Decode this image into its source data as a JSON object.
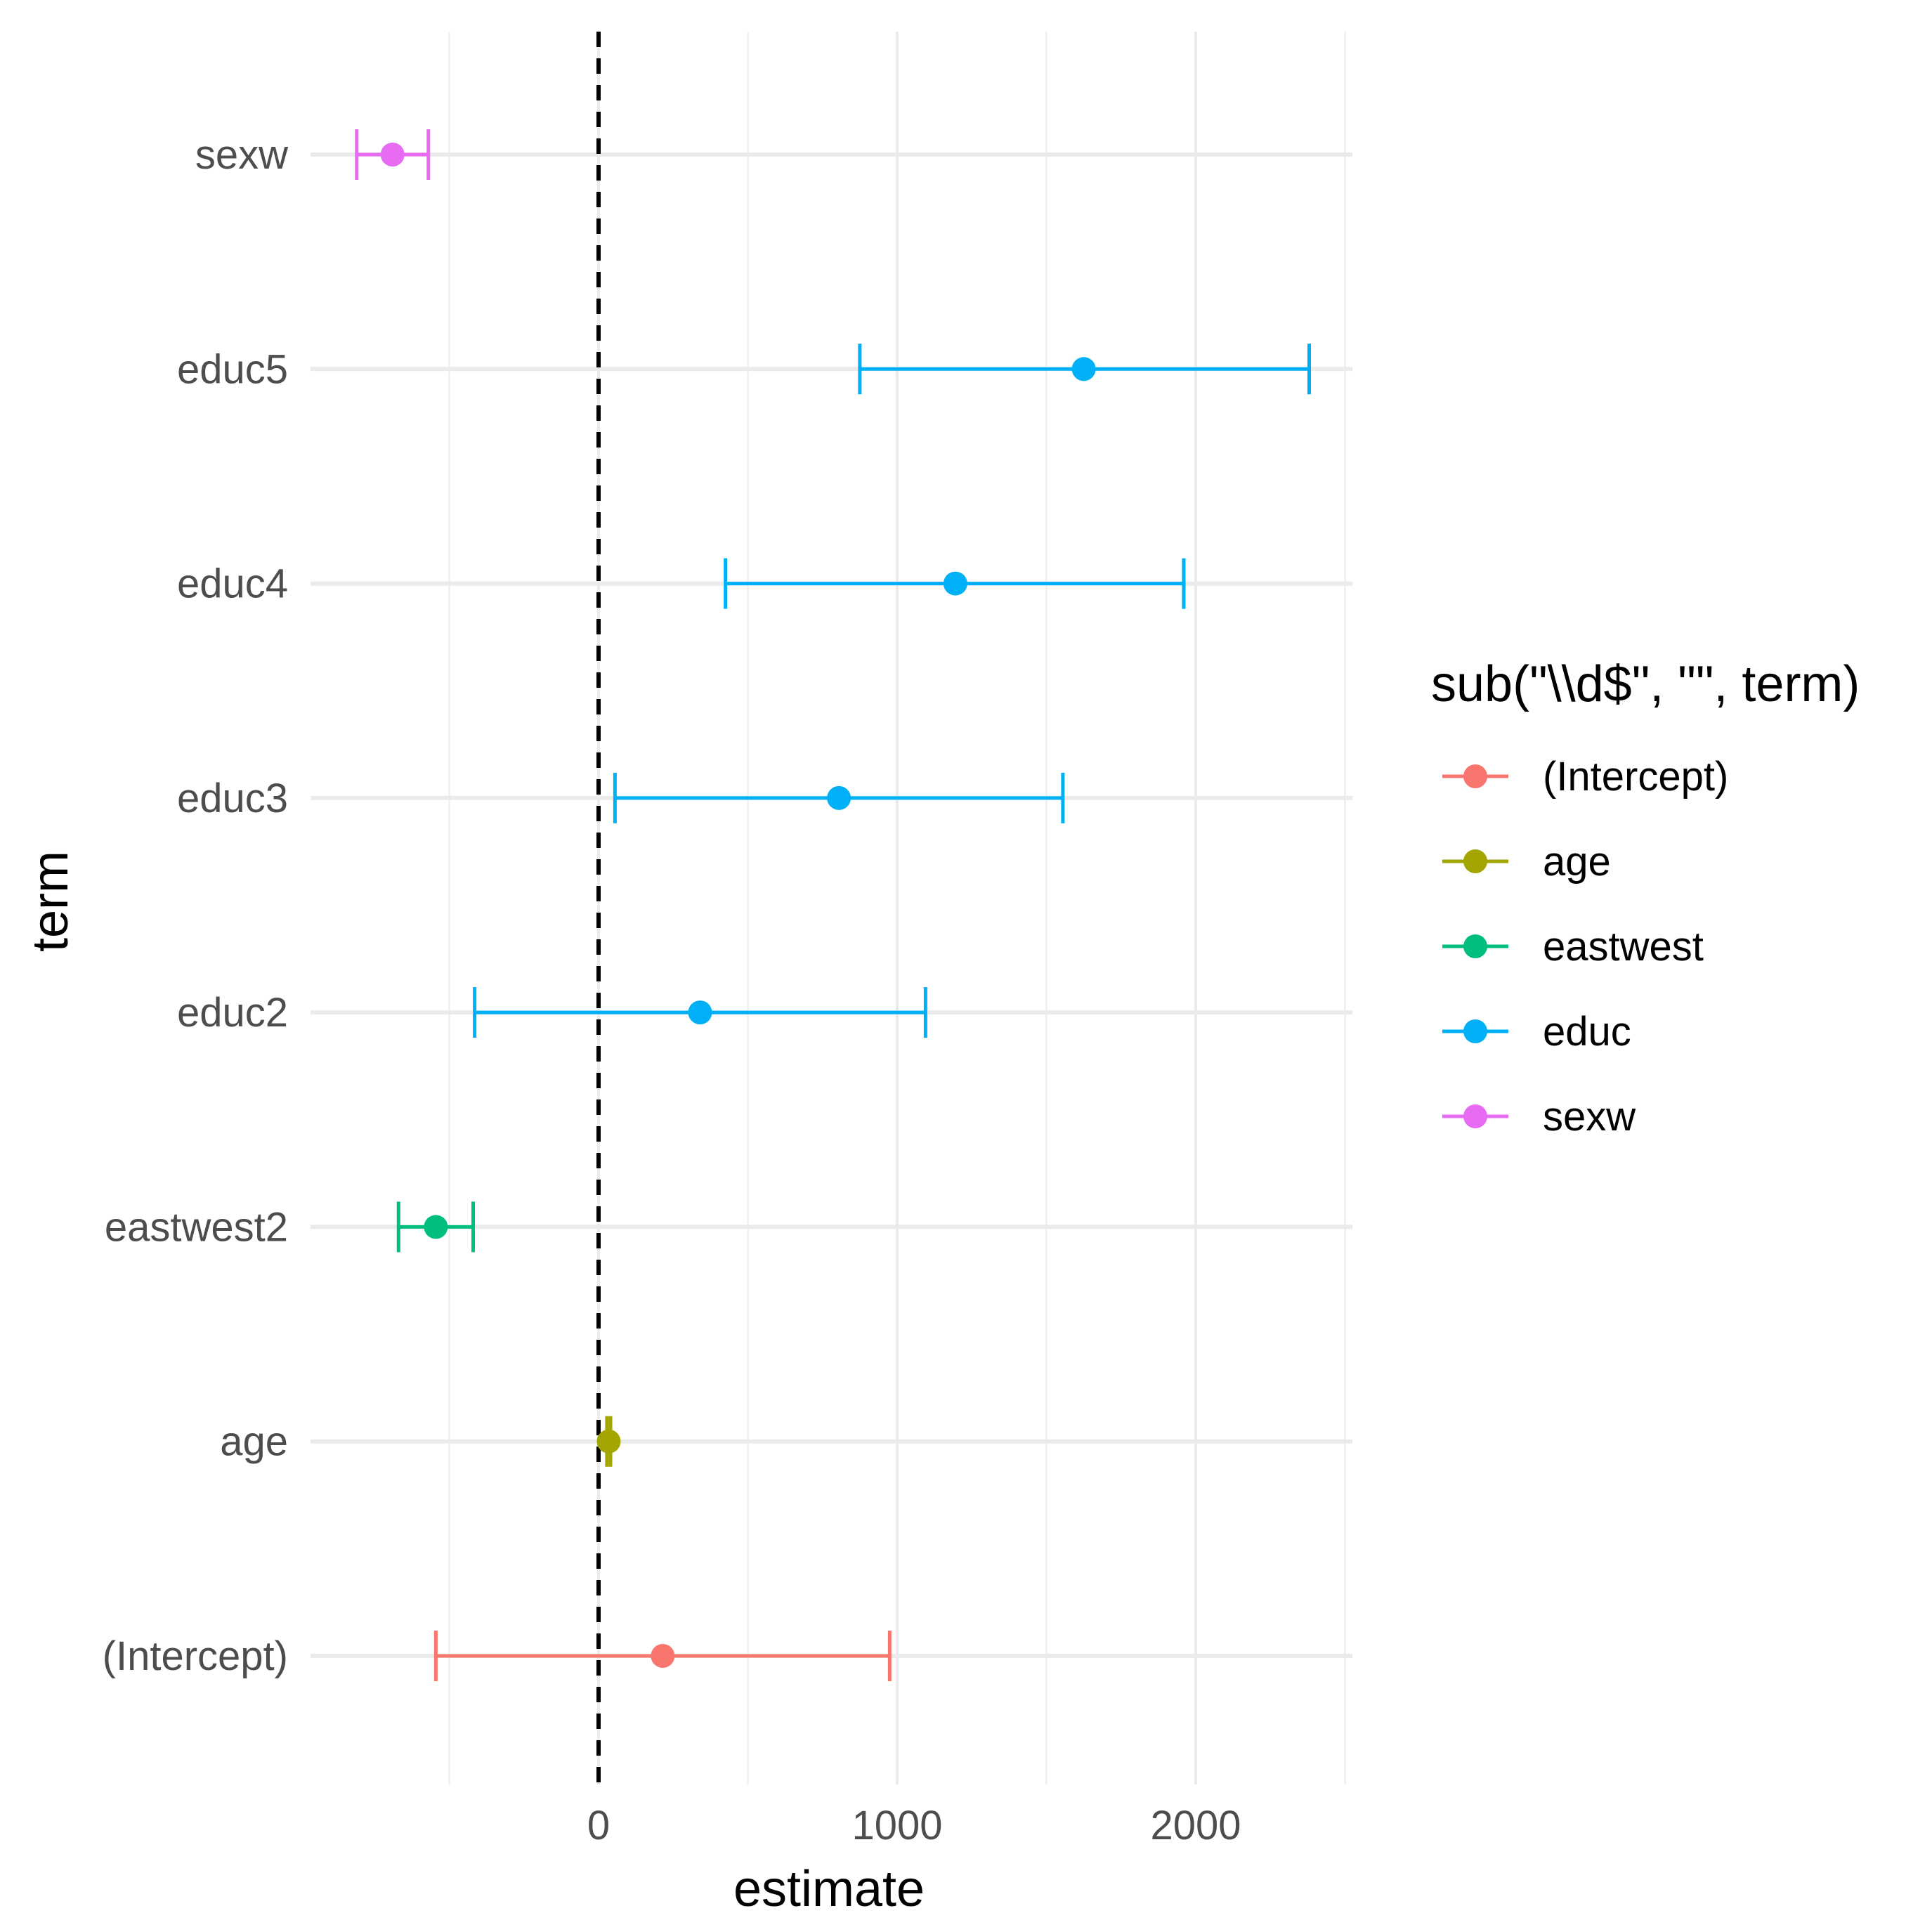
{
  "chart_data": {
    "type": "scatter",
    "subtype": "coefficient-plot-with-error-bars",
    "xlabel": "estimate",
    "ylabel": "term",
    "xlim": [
      -1010,
      2530
    ],
    "x_ticks": [
      0,
      1000,
      2000
    ],
    "x_tick_labels": [
      "0",
      "1000",
      "2000"
    ],
    "reference_line": {
      "x": 0,
      "style": "dashed",
      "color": "#000000"
    },
    "grid": true,
    "terms": [
      {
        "term": "(Intercept)",
        "group": "(Intercept)",
        "estimate": 215,
        "conf_low": -545,
        "conf_high": 975
      },
      {
        "term": "age",
        "group": "age",
        "estimate": 34,
        "conf_low": 28,
        "conf_high": 40
      },
      {
        "term": "eastwest2",
        "group": "eastwest",
        "estimate": -545,
        "conf_low": -670,
        "conf_high": -420
      },
      {
        "term": "educ2",
        "group": "educ",
        "estimate": 340,
        "conf_low": -415,
        "conf_high": 1095
      },
      {
        "term": "educ3",
        "group": "educ",
        "estimate": 805,
        "conf_low": 55,
        "conf_high": 1555
      },
      {
        "term": "educ4",
        "group": "educ",
        "estimate": 1195,
        "conf_low": 425,
        "conf_high": 1960
      },
      {
        "term": "educ5",
        "group": "educ",
        "estimate": 1625,
        "conf_low": 875,
        "conf_high": 2380
      },
      {
        "term": "sexw",
        "group": "sexw",
        "estimate": -690,
        "conf_low": -810,
        "conf_high": -570
      }
    ],
    "legend": {
      "title": "sub(\"\\\\d$\", \"\", term)",
      "position": "right",
      "entries": [
        {
          "label": "(Intercept)",
          "color": "#F8766D"
        },
        {
          "label": "age",
          "color": "#A3A500"
        },
        {
          "label": "eastwest",
          "color": "#00BF7D"
        },
        {
          "label": "educ",
          "color": "#00B0F6"
        },
        {
          "label": "sexw",
          "color": "#E76BF3"
        }
      ]
    }
  }
}
